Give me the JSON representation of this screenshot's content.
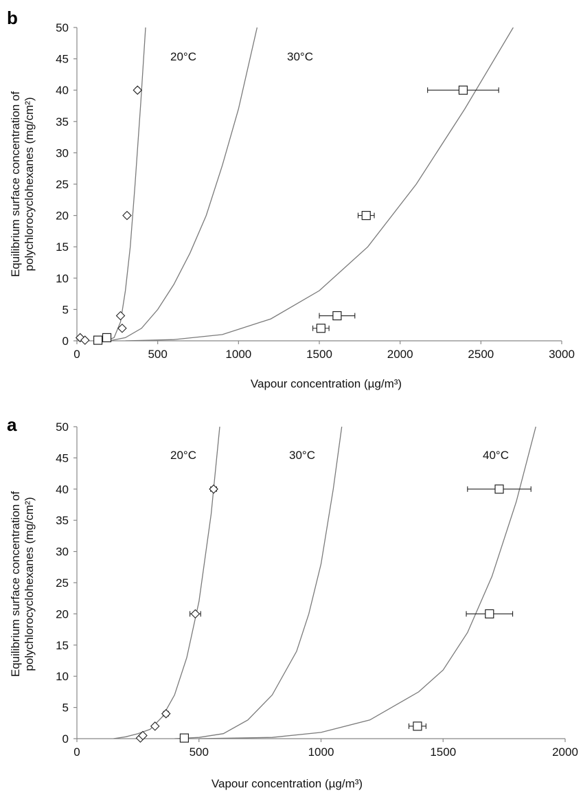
{
  "chart_data": [
    {
      "panel": "b",
      "type": "scatter",
      "xlabel": "Vapour concentration (µg/m³)",
      "ylabel_line1": "Equilibrium surface concentration of",
      "ylabel_line2": "polychlorocyclohexanes (mg/cm²)",
      "xlim": [
        0,
        3000
      ],
      "ylim": [
        0,
        50
      ],
      "xticks": [
        0,
        500,
        1000,
        1500,
        2000,
        2500,
        3000
      ],
      "yticks": [
        0,
        5,
        10,
        15,
        20,
        25,
        30,
        35,
        40,
        45,
        50
      ],
      "grid": false,
      "curve_labels": [
        "20°C",
        "30°C"
      ],
      "series": [
        {
          "marker": "diamond",
          "points": [
            {
              "x": 20,
              "y": 0.5
            },
            {
              "x": 50,
              "y": 0.1
            },
            {
              "x": 280,
              "y": 2
            },
            {
              "x": 270,
              "y": 4
            },
            {
              "x": 310,
              "y": 20,
              "xerr": 12
            },
            {
              "x": 375,
              "y": 40,
              "xerr": 12
            }
          ],
          "curve": [
            [
              180,
              0
            ],
            [
              230,
              0.5
            ],
            [
              270,
              3
            ],
            [
              300,
              8
            ],
            [
              330,
              15
            ],
            [
              360,
              25
            ],
            [
              395,
              38
            ],
            [
              425,
              50
            ]
          ]
        },
        {
          "marker": "square",
          "points": [
            {
              "x": 130,
              "y": 0.1
            },
            {
              "x": 185,
              "y": 0.5
            }
          ],
          "curve": [
            [
              200,
              0
            ],
            [
              300,
              0.5
            ],
            [
              400,
              2
            ],
            [
              500,
              5
            ],
            [
              600,
              9
            ],
            [
              700,
              14
            ],
            [
              800,
              20
            ],
            [
              900,
              28
            ],
            [
              1000,
              37
            ],
            [
              1115,
              50
            ]
          ]
        },
        {
          "marker": "square",
          "points": [
            {
              "x": 1510,
              "y": 2,
              "xerr": 50
            },
            {
              "x": 1610,
              "y": 4,
              "xerr": 110
            },
            {
              "x": 1790,
              "y": 20,
              "xerr": 50
            },
            {
              "x": 2390,
              "y": 40,
              "xerr": 220
            }
          ],
          "curve": [
            [
              300,
              0
            ],
            [
              600,
              0.2
            ],
            [
              900,
              1
            ],
            [
              1200,
              3.5
            ],
            [
              1500,
              8
            ],
            [
              1800,
              15
            ],
            [
              2100,
              25
            ],
            [
              2400,
              37
            ],
            [
              2700,
              50
            ]
          ]
        }
      ]
    },
    {
      "panel": "a",
      "type": "scatter",
      "xlabel": "Vapour concentration (µg/m³)",
      "ylabel_line1": "Equilibrium surface concentration of",
      "ylabel_line2": "polychlorocyclohexanes (mg/cm²)",
      "xlim": [
        0,
        2000
      ],
      "ylim": [
        0,
        50
      ],
      "xticks": [
        0,
        500,
        1000,
        1500,
        2000
      ],
      "yticks": [
        0,
        5,
        10,
        15,
        20,
        25,
        30,
        35,
        40,
        45,
        50
      ],
      "grid": false,
      "curve_labels": [
        "20°C",
        "30°C",
        "40°C"
      ],
      "series": [
        {
          "marker": "diamond",
          "points": [
            {
              "x": 260,
              "y": 0.1
            },
            {
              "x": 270,
              "y": 0.5
            },
            {
              "x": 320,
              "y": 2
            },
            {
              "x": 365,
              "y": 4,
              "xerr": 10
            },
            {
              "x": 485,
              "y": 20,
              "xerr": 22
            },
            {
              "x": 560,
              "y": 40,
              "xerr": 12
            }
          ],
          "curve": [
            [
              150,
              0
            ],
            [
              200,
              0.3
            ],
            [
              250,
              0.8
            ],
            [
              300,
              1.5
            ],
            [
              350,
              3.5
            ],
            [
              400,
              7
            ],
            [
              450,
              13
            ],
            [
              500,
              22
            ],
            [
              550,
              36
            ],
            [
              585,
              50
            ]
          ]
        },
        {
          "marker": "square",
          "points": [
            {
              "x": 440,
              "y": 0.1
            }
          ],
          "curve": [
            [
              400,
              0
            ],
            [
              500,
              0.2
            ],
            [
              600,
              0.8
            ],
            [
              700,
              3
            ],
            [
              800,
              7
            ],
            [
              900,
              14
            ],
            [
              950,
              20
            ],
            [
              1000,
              28
            ],
            [
              1050,
              40
            ],
            [
              1085,
              50
            ]
          ]
        },
        {
          "marker": "square",
          "points": [
            {
              "x": 1395,
              "y": 2,
              "xerr": 35
            },
            {
              "x": 1690,
              "y": 20,
              "xerr": 95
            },
            {
              "x": 1730,
              "y": 40,
              "xerr": 130
            }
          ],
          "curve": [
            [
              500,
              0
            ],
            [
              800,
              0.2
            ],
            [
              1000,
              1
            ],
            [
              1200,
              3
            ],
            [
              1400,
              7.5
            ],
            [
              1500,
              11
            ],
            [
              1600,
              17
            ],
            [
              1700,
              26
            ],
            [
              1800,
              38
            ],
            [
              1860,
              47
            ],
            [
              1880,
              50
            ]
          ]
        }
      ]
    }
  ]
}
